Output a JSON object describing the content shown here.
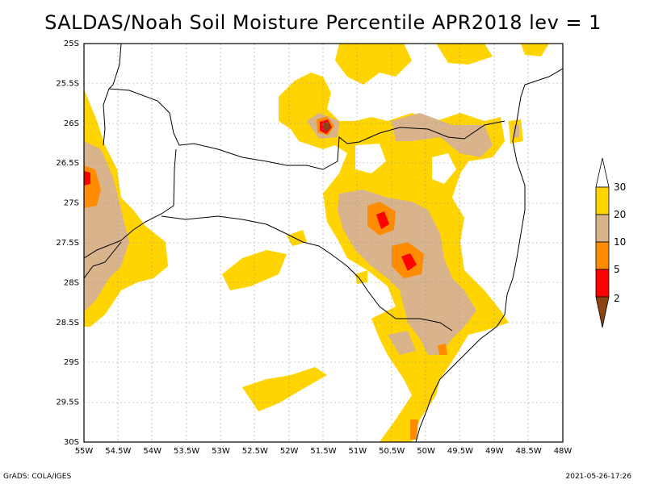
{
  "title": "SALDAS/Noah Soil Moisture Percentile APR2018 lev = 1",
  "footer": {
    "left": "GrADS: COLA/IGES",
    "right": "2021-05-26-17:26"
  },
  "lon_labels": [
    "55W",
    "54.5W",
    "54W",
    "53.5W",
    "53W",
    "52.5W",
    "52W",
    "51.5W",
    "51W",
    "50.5W",
    "50W",
    "49.5W",
    "49W",
    "48.5W",
    "48W"
  ],
  "lat_labels": [
    "25S",
    "25.5S",
    "26S",
    "26.5S",
    "27S",
    "27.5S",
    "28S",
    "28.5S",
    "29S",
    "29.5S",
    "30S"
  ],
  "legend": {
    "labels": [
      "30",
      "20",
      "10",
      "5",
      "2"
    ],
    "colors": {
      "c20_30": "#ffd400",
      "c10_20": "#d9b38c",
      "c5_10": "#ff8c00",
      "c2_5": "#ff0000",
      "c0_2": "#8b4513"
    }
  },
  "colors": {
    "yellow": "#ffd400",
    "tan": "#d9b38c",
    "orange": "#ff8c00",
    "red": "#ff0000",
    "brown": "#8b4513"
  }
}
